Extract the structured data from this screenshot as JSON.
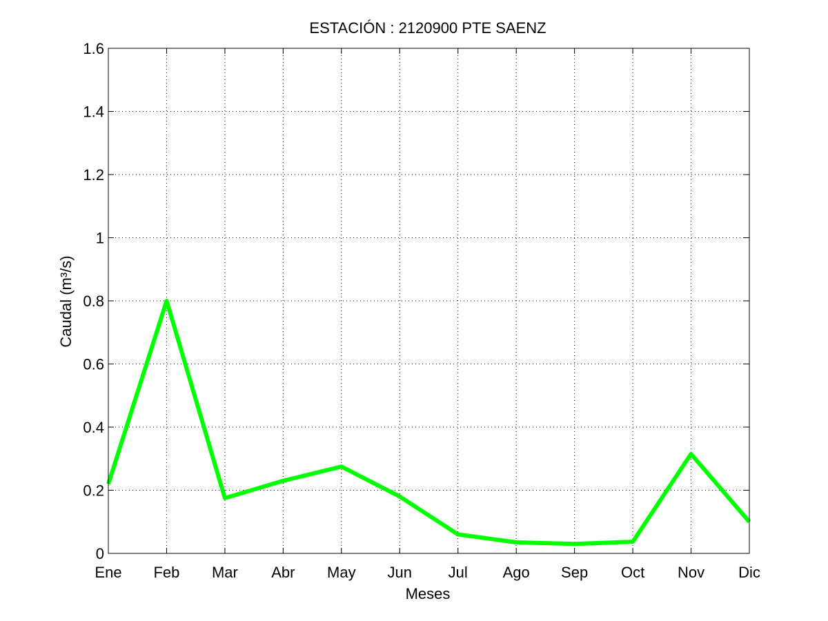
{
  "chart_data": {
    "type": "line",
    "title": "ESTACIÓN :  2120900  PTE SAENZ",
    "xlabel": "Meses",
    "ylabel": "Caudal (m³/s)",
    "categories": [
      "Ene",
      "Feb",
      "Mar",
      "Abr",
      "May",
      "Jun",
      "Jul",
      "Ago",
      "Sep",
      "Oct",
      "Nov",
      "Dic"
    ],
    "series": [
      {
        "values": [
          0.22,
          0.8,
          0.175,
          0.23,
          0.275,
          0.18,
          0.06,
          0.035,
          0.03,
          0.037,
          0.315,
          0.1
        ],
        "color": "#00ff00"
      }
    ],
    "ylim": [
      0,
      1.6
    ],
    "yticks": [
      0,
      0.2,
      0.4,
      0.6,
      0.8,
      1,
      1.2,
      1.4,
      1.6
    ],
    "ytick_labels": [
      "0",
      "0.2",
      "0.4",
      "0.6",
      "0.8",
      "1",
      "1.2",
      "1.4",
      "1.6"
    ],
    "grid": true,
    "grid_style": "dotted"
  }
}
